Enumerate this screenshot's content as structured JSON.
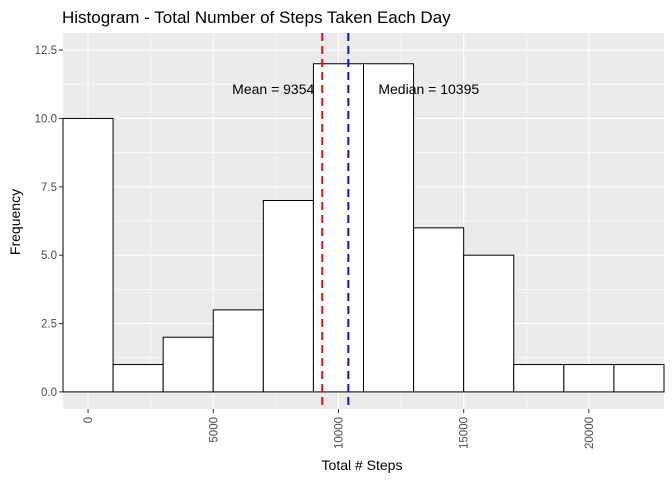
{
  "chart_data": {
    "type": "bar",
    "title": "Histogram - Total Number of Steps Taken Each Day",
    "xlabel": "Total # Steps",
    "ylabel": "Frequency",
    "bin_width": 2000,
    "bins": [
      {
        "start": -1000,
        "end": 1000,
        "count": 10
      },
      {
        "start": 1000,
        "end": 3000,
        "count": 1
      },
      {
        "start": 3000,
        "end": 5000,
        "count": 2
      },
      {
        "start": 5000,
        "end": 7000,
        "count": 3
      },
      {
        "start": 7000,
        "end": 9000,
        "count": 7
      },
      {
        "start": 9000,
        "end": 11000,
        "count": 12
      },
      {
        "start": 11000,
        "end": 13000,
        "count": 12
      },
      {
        "start": 13000,
        "end": 15000,
        "count": 6
      },
      {
        "start": 15000,
        "end": 17000,
        "count": 5
      },
      {
        "start": 17000,
        "end": 19000,
        "count": 1
      },
      {
        "start": 19000,
        "end": 21000,
        "count": 1
      },
      {
        "start": 21000,
        "end": 23000,
        "count": 1
      }
    ],
    "xlim": [
      -1000,
      23000
    ],
    "ylim": [
      0,
      12.5
    ],
    "x_ticks": [
      0,
      5000,
      10000,
      15000,
      20000
    ],
    "x_tick_labels": [
      "0",
      "5000",
      "10000",
      "15000",
      "20000"
    ],
    "y_ticks": [
      0,
      2.5,
      5,
      7.5,
      10,
      12.5
    ],
    "y_tick_labels": [
      "0.0",
      "2.5",
      "5.0",
      "7.5",
      "10.0",
      "12.5"
    ],
    "grid": true,
    "reference_lines": [
      {
        "value": 9354,
        "color": "#dd1111",
        "label": "Mean = 9354"
      },
      {
        "value": 10395,
        "color": "#1111cc",
        "label": "Median = 10395"
      }
    ],
    "colors": {
      "panel_background": "#ebebeb",
      "gridline": "#ffffff",
      "bar_fill": "#ffffff",
      "bar_stroke": "#000000"
    }
  }
}
